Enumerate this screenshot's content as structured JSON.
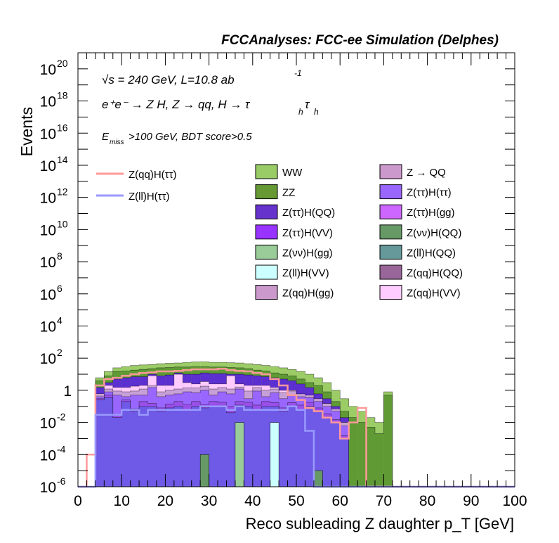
{
  "chart_data": {
    "type": "area",
    "stacked": true,
    "log_y": true,
    "title": "FCCAnalyses: FCC-ee Simulation (Delphes)",
    "xlabel": "Reco subleading Z daughter p_T [GeV]",
    "ylabel": "Events",
    "xlim": [
      0,
      100
    ],
    "ylim": [
      1e-06,
      1e+21
    ],
    "x_ticks": [
      "0",
      "10",
      "20",
      "30",
      "40",
      "50",
      "60",
      "70",
      "80",
      "90",
      "100"
    ],
    "y_ticks": [
      {
        "base": "10",
        "exp": "-6",
        "value": 1e-06
      },
      {
        "base": "10",
        "exp": "-4",
        "value": 0.0001
      },
      {
        "base": "10",
        "exp": "-2",
        "value": 0.01
      },
      {
        "base": "1",
        "exp": "",
        "value": 1
      },
      {
        "base": "10",
        "exp": "2",
        "value": 100.0
      },
      {
        "base": "10",
        "exp": "4",
        "value": 10000.0
      },
      {
        "base": "10",
        "exp": "6",
        "value": 1000000.0
      },
      {
        "base": "10",
        "exp": "8",
        "value": 100000000.0
      },
      {
        "base": "10",
        "exp": "10",
        "value": 10000000000.0
      },
      {
        "base": "10",
        "exp": "12",
        "value": 1000000000000.0
      },
      {
        "base": "10",
        "exp": "14",
        "value": 100000000000000.0
      },
      {
        "base": "10",
        "exp": "16",
        "value": 1e+16
      },
      {
        "base": "10",
        "exp": "18",
        "value": 1e+18
      },
      {
        "base": "10",
        "exp": "20",
        "value": 1e+20
      }
    ],
    "annotations": {
      "energy": "√s = 240 GeV, L=10.8 ab",
      "energy_sup": "-1",
      "process": "e⁺e⁻ → Z H, Z → qq, H → τ",
      "process_sub1": "h",
      "process_mid": "τ",
      "process_sub2": "h",
      "cuts_prefix": "E",
      "cuts_sub": "miss",
      "cuts_rest": ">100 GeV, BDT score>0.5"
    },
    "bin_edges_start": 0,
    "bin_width": 2,
    "stack_upper_edges": [
      [
        1e-06,
        1e-06,
        0.25,
        0.35,
        0.02,
        0.2,
        0.05,
        0.1,
        0.1,
        0.05,
        0.08,
        0.1,
        0.06,
        0.1,
        0.08,
        0.1,
        0.1,
        0.04,
        0.12,
        0.1,
        0.06,
        0.1,
        0.1,
        0.05,
        0.1,
        0.06,
        0.1,
        0.05,
        0.02,
        0.01,
        0.001,
        1e-06,
        1e-06,
        1e-06,
        1e-06,
        1e-06,
        1e-06,
        1e-06,
        1e-06,
        1e-06,
        1e-06,
        1e-06,
        1e-06,
        1e-06,
        1e-06,
        1e-06,
        1e-06,
        1e-06,
        1e-06,
        1e-06
      ],
      [
        1e-06,
        1e-06,
        0.3,
        0.5,
        0.03,
        0.25,
        0.07,
        0.2,
        0.15,
        0.08,
        0.14,
        0.2,
        0.13,
        0.2,
        0.13,
        0.2,
        0.18,
        0.1,
        0.2,
        0.18,
        0.12,
        0.2,
        0.17,
        0.08,
        0.17,
        0.12,
        0.18,
        0.08,
        0.035,
        0.015,
        0.0015,
        1e-06,
        1e-06,
        1e-06,
        1e-06,
        1e-06,
        1e-06,
        1e-06,
        1e-06,
        1e-06,
        1e-06,
        1e-06,
        1e-06,
        1e-06,
        1e-06,
        1e-06,
        1e-06,
        1e-06,
        1e-06,
        1e-06
      ],
      [
        1e-06,
        1e-06,
        0.4,
        0.8,
        0.5,
        0.4,
        0.5,
        0.5,
        1.5,
        0.4,
        0.5,
        0.6,
        0.8,
        0.7,
        1.0,
        0.5,
        0.8,
        0.6,
        1.2,
        0.3,
        0.9,
        0.4,
        0.7,
        0.3,
        0.5,
        0.4,
        0.35,
        0.2,
        0.1,
        0.05,
        0.006,
        1e-06,
        1e-06,
        1e-06,
        1e-06,
        1e-06,
        1e-06,
        1e-06,
        1e-06,
        1e-06,
        1e-06,
        1e-06,
        1e-06,
        1e-06,
        1e-06,
        1e-06,
        1e-06,
        1e-06,
        1e-06,
        1e-06
      ],
      [
        1e-06,
        1e-06,
        0.5,
        1.2,
        0.9,
        0.8,
        0.9,
        1.2,
        2.0,
        0.8,
        1.0,
        1.2,
        1.4,
        1.4,
        1.8,
        1.2,
        1.5,
        1.2,
        1.6,
        0.9,
        1.5,
        1.0,
        1.2,
        0.7,
        0.9,
        0.6,
        0.5,
        0.3,
        0.15,
        0.07,
        0.01,
        1e-06,
        1e-06,
        1e-06,
        1e-06,
        1e-06,
        1e-06,
        1e-06,
        1e-06,
        1e-06,
        1e-06,
        1e-06,
        1e-06,
        1e-06,
        1e-06,
        1e-06,
        1e-06,
        1e-06,
        1e-06,
        1e-06
      ],
      [
        1e-06,
        1e-06,
        0.6,
        2.0,
        1.5,
        1.5,
        1.8,
        2.0,
        8.0,
        2.0,
        2.0,
        10.0,
        3.0,
        2.5,
        3.5,
        2.5,
        2.5,
        8.0,
        2.5,
        2.0,
        2.0,
        2.0,
        1.5,
        1.0,
        1.0,
        0.5,
        0.4,
        0.2,
        0.15,
        0.05,
        0.01,
        1e-06,
        1e-06,
        1e-06,
        1e-06,
        1e-06,
        1e-06,
        1e-06,
        1e-06,
        1e-06,
        1e-06,
        1e-06,
        1e-06,
        1e-06,
        1e-06,
        1e-06,
        1e-06,
        1e-06,
        1e-06,
        1e-06
      ],
      [
        1e-06,
        1e-06,
        1.5,
        3.0,
        5.0,
        6.0,
        7.0,
        7.0,
        10.0,
        8.0,
        9.0,
        12.0,
        10.0,
        10.0,
        12.0,
        11.0,
        11.0,
        10.0,
        10.0,
        9.0,
        8.0,
        7.0,
        6.0,
        5.0,
        4.0,
        2.5,
        1.5,
        0.6,
        0.3,
        0.1,
        0.02,
        1e-06,
        1e-06,
        1e-06,
        1e-06,
        1e-06,
        1e-06,
        1e-06,
        1e-06,
        1e-06,
        1e-06,
        1e-06,
        1e-06,
        1e-06,
        1e-06,
        1e-06,
        1e-06,
        1e-06,
        1e-06,
        1e-06
      ],
      [
        1e-06,
        1e-06,
        4.0,
        8.0,
        15.0,
        16.0,
        18.0,
        20.0,
        22.0,
        25.0,
        26.0,
        28.0,
        28.0,
        30.0,
        30.0,
        28.0,
        28.0,
        26.0,
        25.0,
        22.0,
        18.0,
        16.0,
        12.0,
        10.0,
        8.0,
        5.0,
        3.0,
        2.0,
        0.8,
        0.2,
        0.05,
        0.02,
        0.01,
        0.005,
        0.002,
        0.5,
        1e-06,
        1e-06,
        1e-06,
        1e-06,
        1e-06,
        1e-06,
        1e-06,
        1e-06,
        1e-06,
        1e-06,
        1e-06,
        1e-06,
        1e-06,
        1e-06
      ],
      [
        1e-06,
        1e-06,
        6.0,
        15.0,
        25.0,
        30.0,
        35.0,
        38.0,
        40.0,
        45.0,
        48.0,
        50.0,
        55.0,
        58.0,
        60.0,
        55.0,
        55.0,
        52.0,
        50.0,
        45.0,
        40.0,
        35.0,
        30.0,
        25.0,
        20.0,
        15.0,
        10.0,
        6.0,
        3.0,
        1.0,
        0.3,
        0.1,
        0.05,
        0.02,
        0.01,
        0.8,
        1e-06,
        1e-06,
        1e-06,
        1e-06,
        1e-06,
        1e-06,
        1e-06,
        1e-06,
        1e-06,
        1e-06,
        1e-06,
        1e-06,
        1e-06,
        1e-06
      ]
    ],
    "stack_colors": [
      "#6e5ae6",
      "#9a4fe8",
      "#9966ff",
      "#c8a0d8",
      "#ffccff",
      "#5c2fd0",
      "#5f9a35",
      "#9bcc66"
    ],
    "stack_names": [
      "Z(ττ)H(VV)",
      "Z(ττ)H(QQ)",
      "Z(qq)H(gg)",
      "Z(qq)H(QQ)",
      "Z(qq)H(VV)",
      "Z → QQ",
      "ZZ",
      "WW"
    ],
    "series": [
      {
        "name": "Z(qq)H(ττ)",
        "color": "#ff9999",
        "values": [
          1e-06,
          0.0001,
          2.0,
          5.0,
          6.0,
          8.0,
          10.0,
          12.0,
          13.0,
          15.0,
          15.0,
          16.0,
          18.0,
          20.0,
          20.0,
          20.0,
          22.0,
          18.0,
          16.0,
          15.0,
          12.0,
          10.0,
          5.0,
          2.0,
          0.5,
          0.25,
          0.08,
          0.05,
          0.02,
          0.01,
          0.001,
          0.01,
          0.08,
          1e-06,
          1e-06,
          1e-06,
          1e-06,
          1e-06,
          1e-06,
          1e-06,
          1e-06,
          1e-06,
          1e-06,
          1e-06,
          1e-06,
          1e-06,
          1e-06,
          1e-06,
          1e-06,
          1e-06
        ]
      },
      {
        "name": "Z(ll)H(ττ)",
        "color": "#9999ff",
        "values": [
          1e-06,
          1e-06,
          0.03,
          0.03,
          0.03,
          0.06,
          0.06,
          0.03,
          0.06,
          0.06,
          0.06,
          0.06,
          0.06,
          0.06,
          0.1,
          0.1,
          0.1,
          0.06,
          0.1,
          0.06,
          0.06,
          0.06,
          0.06,
          0.06,
          0.1,
          0.06,
          0.003,
          1e-06,
          1e-06,
          1e-06,
          1e-06,
          1e-06,
          1e-06,
          1e-06,
          1e-06,
          1e-06,
          1e-06,
          1e-06,
          1e-06,
          1e-06,
          1e-06,
          1e-06,
          1e-06,
          1e-06,
          1e-06,
          1e-06,
          1e-06,
          1e-06,
          1e-06,
          1e-06
        ]
      }
    ],
    "extra_bins": [
      {
        "name": "Z(νν)H(gg)",
        "color": "#99cc99",
        "bin_index": 18,
        "value": 0.01
      },
      {
        "name": "Z(ll)H(VV)",
        "color": "#ccffff",
        "bin_index": 22,
        "value": 0.01
      },
      {
        "name": "Z(νν)H(QQ)",
        "color": "#669966",
        "bin_index": 14,
        "value": 0.0001
      },
      {
        "name": "Z(νν)H(QQ)",
        "color": "#669966",
        "bin_index": 27,
        "value": 1e-05
      }
    ],
    "legend_left": [
      {
        "label": "Z(qq)H(ττ)",
        "color": "#ff9999",
        "style": "line"
      },
      {
        "label": "Z(ll)H(ττ)",
        "color": "#9999ff",
        "style": "line"
      }
    ],
    "legend_col1": [
      {
        "label": "WW",
        "color": "#99cc66"
      },
      {
        "label": "ZZ",
        "color": "#669933"
      },
      {
        "label": "Z(ττ)H(QQ)",
        "color": "#6633cc"
      },
      {
        "label": "Z(ττ)H(VV)",
        "color": "#9933ff"
      },
      {
        "label": "Z(νν)H(gg)",
        "color": "#99cc99"
      },
      {
        "label": "Z(ll)H(VV)",
        "color": "#ccffff"
      },
      {
        "label": "Z(qq)H(gg)",
        "color": "#cc99cc"
      }
    ],
    "legend_col2": [
      {
        "label": "Z → QQ",
        "color": "#cc99cc"
      },
      {
        "label": "Z(ττ)H(ττ)",
        "color": "#9966ff"
      },
      {
        "label": "Z(ττ)H(gg)",
        "color": "#cc66ff"
      },
      {
        "label": "Z(νν)H(QQ)",
        "color": "#669966"
      },
      {
        "label": "Z(ll)H(QQ)",
        "color": "#669999"
      },
      {
        "label": "Z(qq)H(QQ)",
        "color": "#996699"
      },
      {
        "label": "Z(qq)H(VV)",
        "color": "#ffccff"
      }
    ]
  }
}
